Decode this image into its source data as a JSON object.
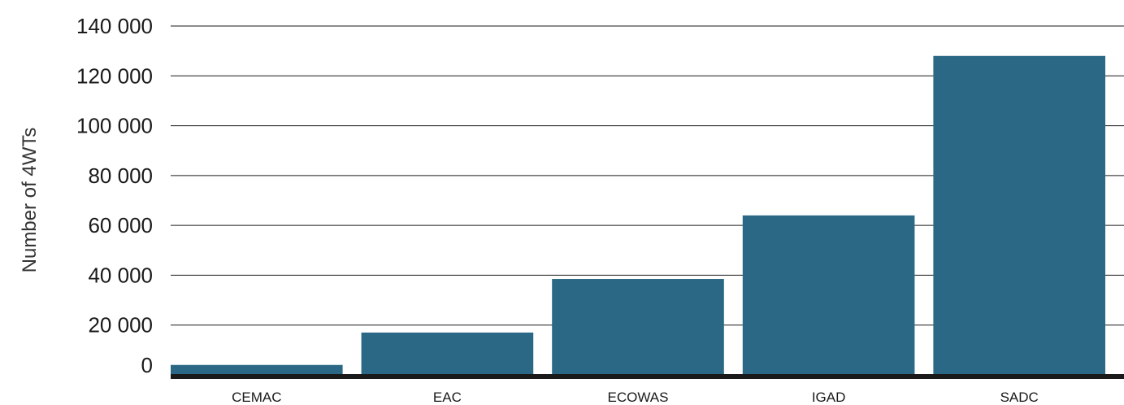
{
  "chart_data": {
    "type": "bar",
    "title": "",
    "xlabel": "",
    "ylabel": "Number of 4WTs",
    "categories": [
      "CEMAC",
      "EAC",
      "ECOWAS",
      "IGAD",
      "SADC"
    ],
    "values": [
      4000,
      17000,
      38500,
      64000,
      128000
    ],
    "ylim": [
      0,
      140000
    ],
    "yticks": [
      0,
      20000,
      40000,
      60000,
      80000,
      100000,
      120000,
      140000
    ],
    "ytick_labels": [
      "0",
      "20 000",
      "40 000",
      "60 000",
      "80 000",
      "100 000",
      "120 000",
      "140 000"
    ],
    "grid": true,
    "legend": "none",
    "colors": {
      "bar": "#2a6885",
      "baseline": "#1a1a1a",
      "grid": "#1a1a1a"
    }
  }
}
